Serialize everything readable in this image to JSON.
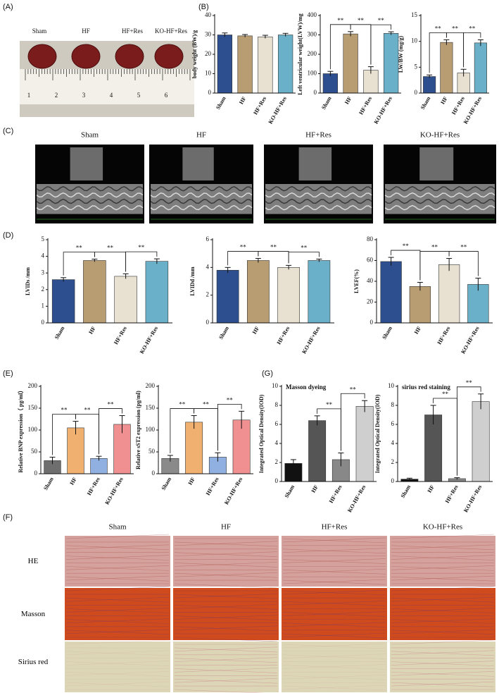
{
  "panels": {
    "A": "(A)",
    "B": "(B)",
    "C": "(C)",
    "D": "(D)",
    "E": "(E)",
    "F": "(F)",
    "G": "(G)"
  },
  "photo_labels": [
    "Sham",
    "HF",
    "HF+Res",
    "KO-HF+Res"
  ],
  "ruler_numbers": [
    1,
    2,
    3,
    4,
    5,
    6
  ],
  "echo_labels": [
    "Sham",
    "HF",
    "HF+Res",
    "KO-HF+Res"
  ],
  "histology": {
    "columns": [
      "Sham",
      "HF",
      "HF+Res",
      "KO-HF+Res"
    ],
    "rows": [
      "HE",
      "Masson",
      "Sirius red"
    ]
  },
  "chart_data": [
    {
      "type": "bar",
      "ylabel": "body weight (BW)/g",
      "categories": [
        "Sham",
        "HF",
        "HF+Res",
        "KO-HF+Res"
      ],
      "values": [
        30,
        29.5,
        29,
        30
      ],
      "errors": [
        1,
        0.7,
        0.8,
        0.8
      ],
      "colors": [
        "#2e4f8f",
        "#b89c72",
        "#e8e0d0",
        "#6ab0c8"
      ],
      "ylim": [
        0,
        40
      ],
      "yticks": [
        0,
        10,
        20,
        30,
        40
      ],
      "annotations": []
    },
    {
      "type": "bar",
      "ylabel": "Left ventricular weight(LVW)/mg",
      "categories": [
        "Sham",
        "HF",
        "HF+Res",
        "KO-HF+Res"
      ],
      "values": [
        100,
        305,
        118,
        308
      ],
      "errors": [
        12,
        12,
        18,
        8
      ],
      "colors": [
        "#2e4f8f",
        "#b89c72",
        "#e8e0d0",
        "#6ab0c8"
      ],
      "ylim": [
        0,
        400
      ],
      "yticks": [
        0,
        100,
        200,
        300,
        400
      ],
      "annotations": [
        {
          "text": "**",
          "from": "Sham",
          "to": "HF"
        },
        {
          "text": "**",
          "from": "HF",
          "to": "HF+Res"
        },
        {
          "text": "**",
          "from": "HF+Res",
          "to": "KO-HF+Res"
        }
      ]
    },
    {
      "type": "bar",
      "ylabel": "LW/BW (mg/g)",
      "categories": [
        "Sham",
        "HF",
        "HF+Res",
        "KO-HF+Res"
      ],
      "values": [
        3.2,
        9.8,
        3.9,
        9.7
      ],
      "errors": [
        0.3,
        0.5,
        0.7,
        0.6
      ],
      "colors": [
        "#2e4f8f",
        "#b89c72",
        "#e8e0d0",
        "#6ab0c8"
      ],
      "ylim": [
        0,
        15
      ],
      "yticks": [
        0,
        5,
        10,
        15
      ],
      "annotations": [
        {
          "text": "**",
          "from": "Sham",
          "to": "HF"
        },
        {
          "text": "**",
          "from": "HF",
          "to": "HF+Res"
        },
        {
          "text": "**",
          "from": "HF+Res",
          "to": "KO-HF+Res"
        }
      ]
    },
    {
      "type": "bar",
      "ylabel": "LVIDs /mm",
      "categories": [
        "Sham",
        "HF",
        "HF+Res",
        "KO-HF+Res"
      ],
      "values": [
        2.6,
        3.75,
        2.8,
        3.7
      ],
      "errors": [
        0.12,
        0.08,
        0.15,
        0.15
      ],
      "colors": [
        "#2e4f8f",
        "#b89c72",
        "#e8e0d0",
        "#6ab0c8"
      ],
      "ylim": [
        0,
        5
      ],
      "yticks": [
        0,
        1,
        2,
        3,
        4,
        5
      ],
      "annotations": [
        {
          "text": "**",
          "from": "Sham",
          "to": "HF"
        },
        {
          "text": "**",
          "from": "HF",
          "to": "HF+Res"
        },
        {
          "text": "**",
          "from": "HF+Res",
          "to": "KO-HF+Res"
        }
      ]
    },
    {
      "type": "bar",
      "ylabel": "LVIDd /mm",
      "categories": [
        "Sham",
        "HF",
        "HF+Res",
        "KO-HF+Res"
      ],
      "values": [
        3.8,
        4.5,
        4.0,
        4.5
      ],
      "errors": [
        0.2,
        0.15,
        0.15,
        0.1
      ],
      "colors": [
        "#2e4f8f",
        "#b89c72",
        "#e8e0d0",
        "#6ab0c8"
      ],
      "ylim": [
        0,
        6
      ],
      "yticks": [
        0,
        2,
        4,
        6
      ],
      "annotations": [
        {
          "text": "**",
          "from": "Sham",
          "to": "HF"
        },
        {
          "text": "**",
          "from": "HF",
          "to": "HF+Res"
        },
        {
          "text": "**",
          "from": "HF+Res",
          "to": "KO-HF+Res"
        }
      ]
    },
    {
      "type": "bar",
      "ylabel": "LVEF(%)",
      "categories": [
        "Sham",
        "HF",
        "HF+Res",
        "KO-HF+Res"
      ],
      "values": [
        59,
        35,
        56,
        37
      ],
      "errors": [
        4,
        4,
        6,
        6
      ],
      "colors": [
        "#2e4f8f",
        "#b89c72",
        "#e8e0d0",
        "#6ab0c8"
      ],
      "ylim": [
        0,
        80
      ],
      "yticks": [
        0,
        20,
        40,
        60,
        80
      ],
      "annotations": [
        {
          "text": "**",
          "from": "Sham",
          "to": "HF"
        },
        {
          "text": "**",
          "from": "HF",
          "to": "HF+Res"
        },
        {
          "text": "**",
          "from": "HF+Res",
          "to": "KO-HF+Res"
        }
      ]
    },
    {
      "type": "bar",
      "ylabel": "Relative BNP expression（ pg/ml）",
      "categories": [
        "Sham",
        "HF",
        "HF+Res",
        "KO-HF+Res"
      ],
      "values": [
        30,
        105,
        35,
        113
      ],
      "errors": [
        8,
        15,
        5,
        20
      ],
      "colors": [
        "#6e6e6e",
        "#f0b070",
        "#8fb0e0",
        "#f09090"
      ],
      "ylim": [
        0,
        200
      ],
      "yticks": [
        0,
        50,
        100,
        150,
        200
      ],
      "annotations": [
        {
          "text": "**",
          "from": "Sham",
          "to": "HF"
        },
        {
          "text": "**",
          "from": "HF",
          "to": "HF+Res"
        },
        {
          "text": "**",
          "from": "HF+Res",
          "to": "KO-HF+Res"
        }
      ]
    },
    {
      "type": "bar",
      "ylabel": "Relative sST2 expression (pg/ml)",
      "categories": [
        "Sham",
        "HF",
        "HF+Res",
        "KO-HF+Res"
      ],
      "values": [
        35,
        118,
        38,
        123
      ],
      "errors": [
        7,
        15,
        10,
        20
      ],
      "colors": [
        "#8a8a8a",
        "#f0b070",
        "#8fb0e0",
        "#f09090"
      ],
      "ylim": [
        0,
        200
      ],
      "yticks": [
        0,
        50,
        100,
        150,
        200
      ],
      "annotations": [
        {
          "text": "**",
          "from": "Sham",
          "to": "HF"
        },
        {
          "text": "**",
          "from": "HF",
          "to": "HF+Res"
        },
        {
          "text": "**",
          "from": "HF+Res",
          "to": "KO-HF+Res"
        }
      ]
    },
    {
      "type": "bar",
      "title": "Masson dyeing",
      "ylabel": "Integrated Optical Density(IOD)",
      "categories": [
        "Sham",
        "HF",
        "HF+Res",
        "KO-HF+Res"
      ],
      "values": [
        1.9,
        6.4,
        2.3,
        7.9
      ],
      "errors": [
        0.4,
        0.5,
        0.7,
        0.6
      ],
      "colors": [
        "#111111",
        "#555555",
        "#888888",
        "#cfcfcf"
      ],
      "ylim": [
        0,
        10
      ],
      "yticks": [
        0,
        2,
        4,
        6,
        8,
        10
      ],
      "annotations": [
        {
          "text": "**",
          "from": "HF",
          "to": "HF+Res"
        },
        {
          "text": "**",
          "from": "HF+Res",
          "to": "KO-HF+Res"
        }
      ]
    },
    {
      "type": "bar",
      "title": "sirius red staining",
      "ylabel": "Integrated Optical Density(IOD)",
      "categories": [
        "Sham",
        "HF",
        "HF+Res",
        "KO-HF+Res"
      ],
      "values": [
        0.25,
        7.0,
        0.3,
        8.4
      ],
      "errors": [
        0.1,
        1.0,
        0.1,
        0.8
      ],
      "colors": [
        "#111111",
        "#555555",
        "#888888",
        "#cfcfcf"
      ],
      "ylim": [
        0,
        10
      ],
      "yticks": [
        0,
        2,
        4,
        6,
        8,
        10
      ],
      "annotations": [
        {
          "text": "**",
          "from": "HF",
          "to": "HF+Res"
        },
        {
          "text": "**",
          "from": "HF+Res",
          "to": "KO-HF+Res"
        }
      ]
    }
  ]
}
